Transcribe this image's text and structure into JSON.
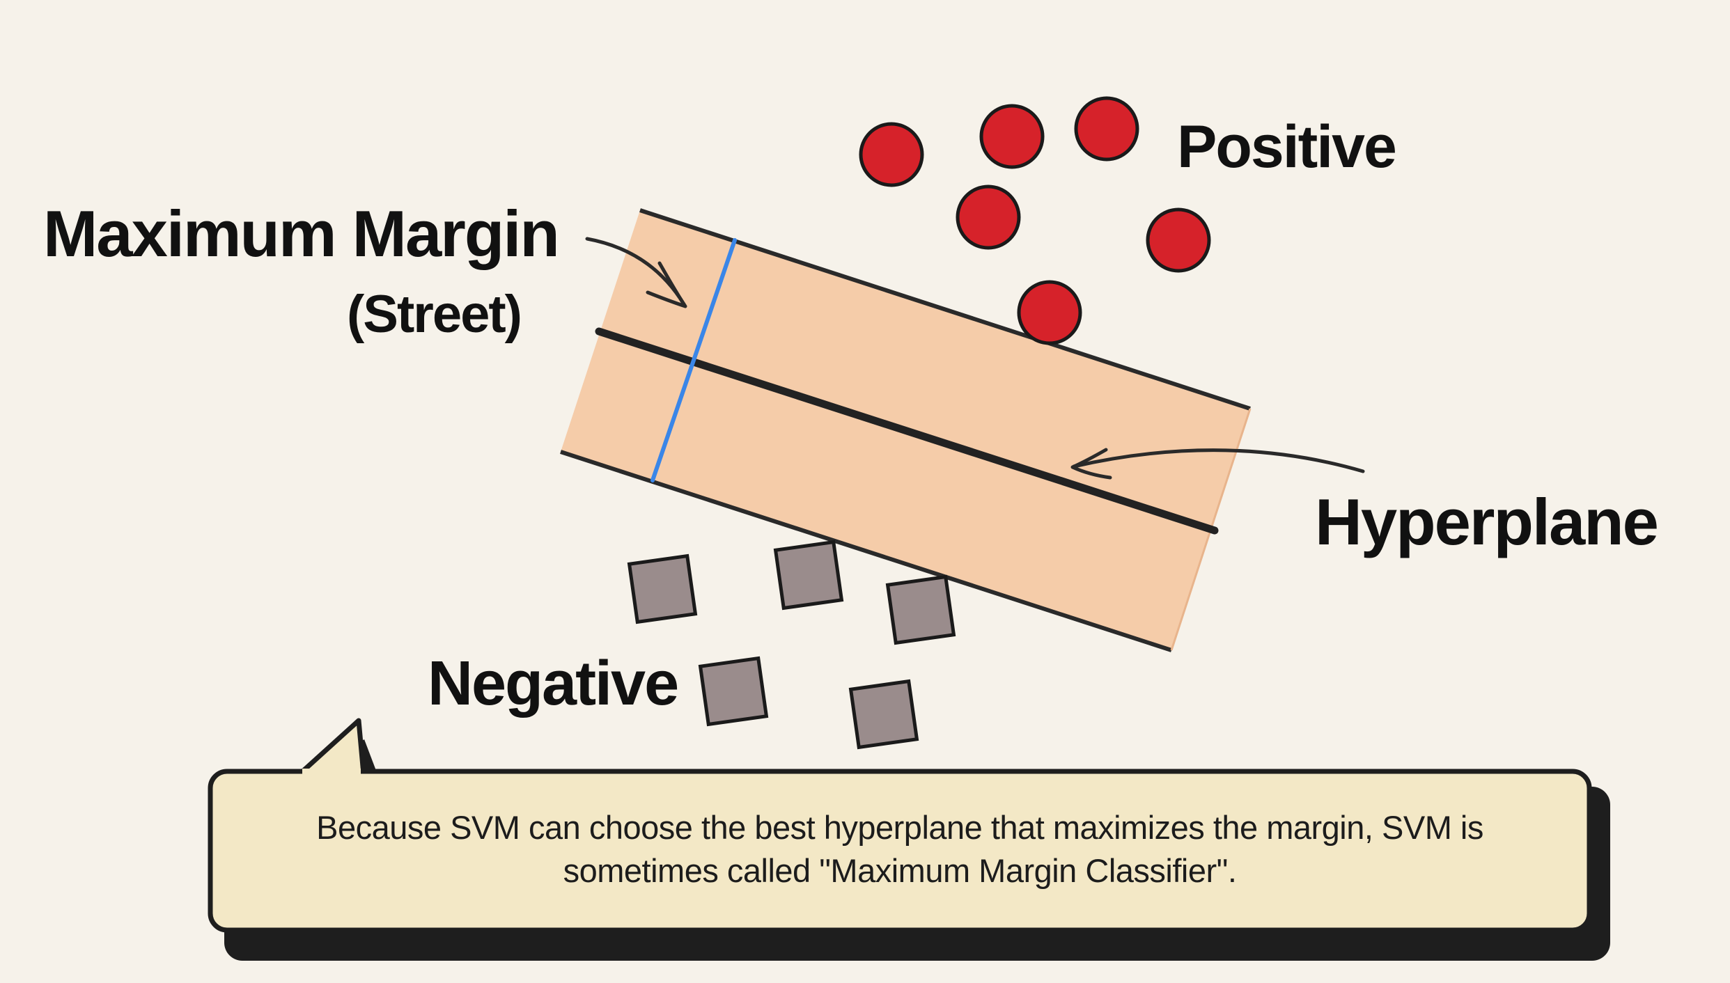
{
  "labels": {
    "positive": "Positive",
    "maximum_margin": "Maximum Margin",
    "street": "(Street)",
    "hyperplane": "Hyperplane",
    "negative": "Negative"
  },
  "caption": "Because SVM can choose the best hyperplane that maximizes the margin, SVM is sometimes called \"Maximum Margin Classifier\".",
  "colors": {
    "background": "#f6f2ea",
    "street_fill": "#f5cca9",
    "positive_point": "#d6222a",
    "negative_point": "#9a8c8c",
    "margin_width_line": "#3a86e8",
    "outline": "#1a1a1a",
    "caption_fill": "#f3e8c6",
    "caption_shadow": "#1e1e1e"
  },
  "icons": {
    "positive_marker": "red-circle",
    "negative_marker": "gray-square",
    "annotation_arrow": "curved-arrow"
  }
}
